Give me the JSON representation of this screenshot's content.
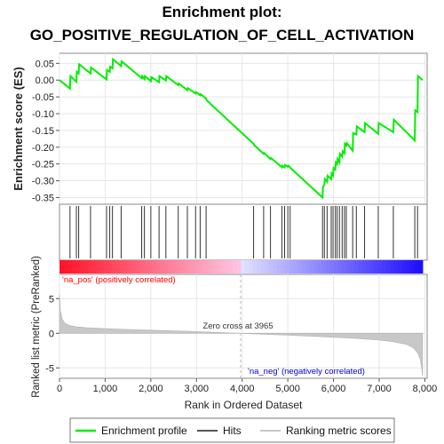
{
  "chart_data": {
    "type": "line",
    "title_line1": "Enrichment plot:",
    "title_line2": "GO_POSITIVE_REGULATION_OF_CELL_ACTIVATION",
    "es_panel": {
      "ylabel": "Enrichment score (ES)",
      "ylim": [
        -0.37,
        0.08
      ],
      "yticks": [
        "0.05",
        "0.00",
        "-0.05",
        "-0.10",
        "-0.15",
        "-0.20",
        "-0.25",
        "-0.30",
        "-0.35"
      ],
      "ytick_values": [
        0.05,
        0.0,
        -0.05,
        -0.1,
        -0.15,
        -0.2,
        -0.25,
        -0.3,
        -0.35
      ],
      "series": [
        {
          "name": "Enrichment profile",
          "color": "#00ee00",
          "x": [
            0,
            230,
            240,
            370,
            380,
            420,
            430,
            680,
            690,
            1030,
            1040,
            1100,
            1110,
            1160,
            1170,
            1350,
            1360,
            1800,
            1810,
            1860,
            1870,
            2000,
            2010,
            2180,
            2190,
            2330,
            2340,
            2600,
            2610,
            2800,
            2810,
            2980,
            2990,
            3080,
            3090,
            3210,
            3220,
            4250,
            4260,
            4470,
            4480,
            4620,
            4630,
            4870,
            4880,
            4930,
            4940,
            5000,
            5010,
            5050,
            5060,
            5760,
            5770,
            5800,
            5810,
            5860,
            5870,
            5950,
            5960,
            5990,
            6000,
            6040,
            6050,
            6080,
            6090,
            6130,
            6140,
            6190,
            6200,
            6240,
            6250,
            6280,
            6290,
            6420,
            6430,
            6500,
            6510,
            6680,
            6690,
            6980,
            6990,
            7310,
            7320,
            7780,
            7790,
            7840,
            7850,
            7950
          ],
          "y": [
            0.0,
            -0.025,
            0.012,
            -0.005,
            0.025,
            0.02,
            0.047,
            0.02,
            0.038,
            0.002,
            0.03,
            0.025,
            0.04,
            0.035,
            0.062,
            0.042,
            0.056,
            0.006,
            0.012,
            0.003,
            0.012,
            -0.003,
            0.009,
            -0.006,
            0.012,
            -0.001,
            0.012,
            -0.015,
            -0.01,
            -0.03,
            -0.024,
            -0.04,
            -0.036,
            -0.045,
            -0.042,
            -0.055,
            -0.06,
            -0.19,
            -0.193,
            -0.22,
            -0.217,
            -0.235,
            -0.232,
            -0.26,
            -0.255,
            -0.26,
            -0.253,
            -0.258,
            -0.255,
            -0.26,
            -0.262,
            -0.35,
            -0.318,
            -0.312,
            -0.295,
            -0.303,
            -0.285,
            -0.295,
            -0.278,
            -0.284,
            -0.262,
            -0.267,
            -0.245,
            -0.25,
            -0.235,
            -0.245,
            -0.22,
            -0.228,
            -0.212,
            -0.218,
            -0.19,
            -0.195,
            -0.188,
            -0.21,
            -0.158,
            -0.162,
            -0.138,
            -0.155,
            -0.128,
            -0.16,
            -0.128,
            -0.155,
            -0.118,
            -0.18,
            -0.09,
            -0.095,
            0.012,
            0.0
          ]
        }
      ]
    },
    "hits_panel": {
      "hit_positions": [
        230,
        370,
        420,
        680,
        1030,
        1100,
        1160,
        1350,
        1800,
        1860,
        2000,
        2180,
        2330,
        2600,
        2800,
        2980,
        3080,
        3210,
        4250,
        4470,
        4620,
        4870,
        4930,
        5000,
        5050,
        5760,
        5800,
        5860,
        5950,
        5990,
        6040,
        6080,
        6130,
        6190,
        6240,
        6280,
        6420,
        6500,
        6680,
        6980,
        7310,
        7780,
        7840
      ]
    },
    "rank_panel": {
      "xlabel": "Rank in Ordered Dataset",
      "ylabel": "Ranked list metric (PreRanked)",
      "ylim": [
        -6.5,
        8.5
      ],
      "yticks": [
        "5",
        "0",
        "-5"
      ],
      "ytick_values": [
        5,
        0,
        -5
      ],
      "xlim": [
        0,
        8050
      ],
      "xticks": [
        "0",
        "1,000",
        "2,000",
        "3,000",
        "4,000",
        "5,000",
        "6,000",
        "7,000",
        "8,000"
      ],
      "xtick_values": [
        0,
        1000,
        2000,
        3000,
        4000,
        5000,
        6000,
        7000,
        8000
      ],
      "metric_x": [
        0,
        20,
        60,
        120,
        200,
        350,
        600,
        1000,
        1500,
        2000,
        2500,
        3000,
        3500,
        3965,
        4500,
        5000,
        5500,
        6000,
        6500,
        7000,
        7300,
        7600,
        7750,
        7850,
        7900,
        7930,
        7950
      ],
      "metric_y": [
        5.6,
        3.2,
        2.0,
        1.45,
        1.15,
        0.95,
        0.8,
        0.67,
        0.55,
        0.45,
        0.35,
        0.25,
        0.12,
        0.0,
        -0.15,
        -0.28,
        -0.42,
        -0.58,
        -0.75,
        -0.98,
        -1.2,
        -1.6,
        -2.1,
        -2.9,
        -3.8,
        -5.0,
        -6.2
      ],
      "zero_cross_label": "Zero cross at 3965",
      "zero_cross": 3965,
      "pos_label": "'na_pos' (positively correlated)",
      "neg_label": "'na_neg' (negatively correlated)",
      "pos_color": "#ff0000",
      "neg_color": "#0000ff"
    },
    "legend": {
      "items": [
        {
          "label": "Enrichment profile",
          "color": "#00ee00"
        },
        {
          "label": "Hits",
          "color": "#555555"
        },
        {
          "label": "Ranking metric scores",
          "color": "#c8c8c8"
        }
      ]
    }
  }
}
